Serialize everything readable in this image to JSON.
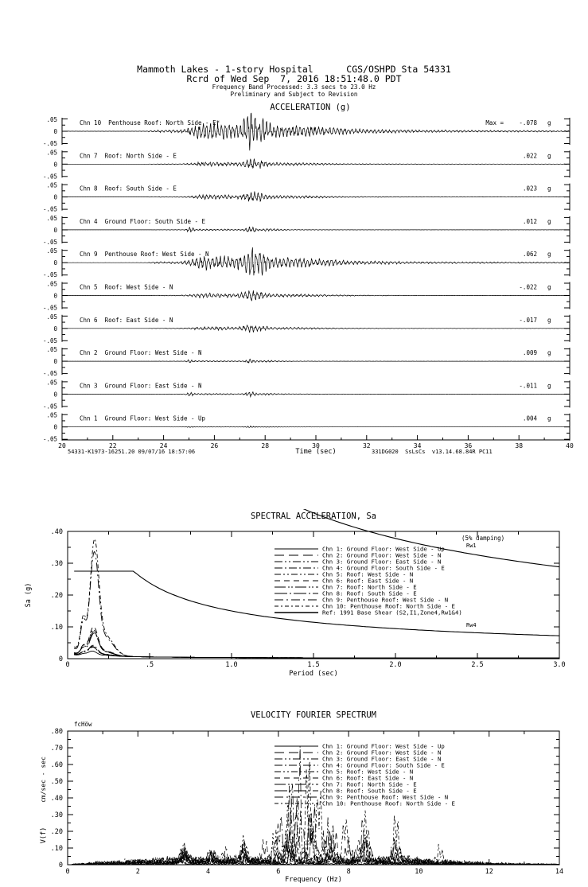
{
  "header": {
    "line1": "Mammoth Lakes - 1-story Hospital      CGS/OSHPD Sta 54331",
    "line2": "Rcrd of Wed Sep  7, 2016 18:51:48.0 PDT",
    "line3": "Frequency Band Processed: 3.3 secs to 23.0 Hz",
    "line4": "Preliminary and Subject to Revision"
  },
  "chart_data": [
    {
      "type": "line",
      "id": "acceleration-time-series",
      "title": "ACCELERATION (g)",
      "xlabel": "Time (sec)",
      "x_range": [
        20,
        40
      ],
      "x_major_ticks": [
        20,
        22,
        24,
        26,
        28,
        30,
        32,
        34,
        36,
        38,
        40
      ],
      "strip_yticks": [
        ".05",
        "0",
        "-.05"
      ],
      "strip_scale_g": 0.05,
      "unit": "g",
      "max_prefix": "Max =",
      "footer_left": "54331-K1973-16251.20 09/07/16 18:57:06",
      "footer_right": "331DG020  SsLsCs  v13.14.68.84R PC11",
      "main_event_time_sec": 27.5,
      "channels": [
        {
          "label": "Chn 10  Penthouse Roof: North Side - E*",
          "max_label": "-.078",
          "peak_g": -0.078,
          "kind": "penthouse",
          "carrier_hz": 6.8
        },
        {
          "label": "Chn 7  Roof: North Side - E",
          "max_label": ".022",
          "peak_g": 0.022,
          "kind": "roof",
          "carrier_hz": 6.8
        },
        {
          "label": "Chn 8  Roof: South Side - E",
          "max_label": ".023",
          "peak_g": 0.023,
          "kind": "roof",
          "carrier_hz": 6.9
        },
        {
          "label": "Chn 4  Ground Floor: South Side - E",
          "max_label": ".012",
          "peak_g": 0.012,
          "kind": "ground",
          "carrier_hz": 7.2
        },
        {
          "label": "Chn 9  Penthouse Roof: West Side - N",
          "max_label": ".062",
          "peak_g": 0.062,
          "kind": "penthouse",
          "carrier_hz": 6.4
        },
        {
          "label": "Chn 5  Roof: West Side - N",
          "max_label": "-.022",
          "peak_g": -0.022,
          "kind": "roof",
          "carrier_hz": 6.4
        },
        {
          "label": "Chn 6  Roof: East Side - N",
          "max_label": "-.017",
          "peak_g": -0.017,
          "kind": "roof",
          "carrier_hz": 6.5
        },
        {
          "label": "Chn 2  Ground Floor: West Side - N",
          "max_label": ".009",
          "peak_g": 0.009,
          "kind": "ground",
          "carrier_hz": 7.0
        },
        {
          "label": "Chn 3  Ground Floor: East Side - N",
          "max_label": "-.011",
          "peak_g": -0.011,
          "kind": "ground",
          "carrier_hz": 7.0
        },
        {
          "label": "Chn 1  Ground Floor: West Side - Up",
          "max_label": ".004",
          "peak_g": 0.004,
          "kind": "ground",
          "carrier_hz": 9.0
        }
      ]
    },
    {
      "type": "line",
      "id": "spectral-acceleration",
      "title": "SPECTRAL ACCELERATION, Sa",
      "damping_note": "(5% damping)",
      "xlabel": "Period (sec)",
      "ylabel": "Sa (g)",
      "xlim": [
        0,
        3.0
      ],
      "ylim": [
        0,
        0.4
      ],
      "x_major_tick_labels": [
        "0",
        ".5",
        "1.0",
        "1.5",
        "2.0",
        "2.5",
        "3.0"
      ],
      "x_major_tick_values": [
        0,
        0.5,
        1.0,
        1.5,
        2.0,
        2.5,
        3.0
      ],
      "x_minor_step": 0.25,
      "y_major_tick_labels": [
        ".40",
        ".30",
        ".20",
        ".10",
        "0"
      ],
      "y_major_tick_values": [
        0.4,
        0.3,
        0.2,
        0.1,
        0
      ],
      "y_minor_step": 0.05,
      "series": [
        {
          "name": "Chn 1: Ground Floor: West Side - Up",
          "dash": "",
          "sa_peak_g": 0.014,
          "peak_period_sec": 0.15,
          "pga_g": 0.004
        },
        {
          "name": "Chn 2: Ground Floor: West Side - N",
          "dash": "12 6",
          "sa_peak_g": 0.027,
          "peak_period_sec": 0.15,
          "pga_g": 0.009
        },
        {
          "name": "Chn 3: Ground Floor: East Side - N",
          "dash": "10 3 2 3 2 3",
          "sa_peak_g": 0.025,
          "peak_period_sec": 0.15,
          "pga_g": 0.011
        },
        {
          "name": "Chn 4: Ground Floor: South Side - E",
          "dash": "10 3 2 3",
          "sa_peak_g": 0.03,
          "peak_period_sec": 0.15,
          "pga_g": 0.012
        },
        {
          "name": "Chn 5: Roof: West Side - N",
          "dash": "8 3 2 3 2 3",
          "sa_peak_g": 0.075,
          "peak_period_sec": 0.15,
          "pga_g": 0.022
        },
        {
          "name": "Chn 6: Roof: East Side - N",
          "dash": "7 5",
          "sa_peak_g": 0.085,
          "peak_period_sec": 0.15,
          "pga_g": 0.017
        },
        {
          "name": "Chn 7: Roof: North Side - E",
          "dash": "14 3 2 2 2 3",
          "sa_peak_g": 0.07,
          "peak_period_sec": 0.15,
          "pga_g": 0.022
        },
        {
          "name": "Chn 8: Roof: South Side - E",
          "dash": "16 3 2 3",
          "sa_peak_g": 0.065,
          "peak_period_sec": 0.15,
          "pga_g": 0.023
        },
        {
          "name": "Chn 9: Penthouse Roof: West Side - N",
          "dash": "11 4 2 4",
          "sa_peak_g": 0.3,
          "peak_period_sec": 0.15,
          "pga_g": 0.062
        },
        {
          "name": "Chn 10: Penthouse Roof: North Side - E",
          "dash": "5 3 2 3",
          "sa_peak_g": 0.335,
          "peak_period_sec": 0.15,
          "pga_g": 0.078
        }
      ],
      "ref": {
        "name": "Ref: 1991 Base Shear (S2,I1,Zone4,Rw1&4)",
        "labels": [
          "Rw1",
          "Rw4"
        ],
        "plateau_g": 0.275,
        "corner_period_sec": 0.403,
        "coef_rw4": 0.15,
        "coef_rw1": 0.6,
        "decay_exponent": 0.6667
      }
    },
    {
      "type": "line",
      "id": "velocity-fourier-spectrum",
      "title": "VELOCITY FOURIER SPECTRUM",
      "corner_note": "fcHöw",
      "xlabel": "Frequency (Hz)",
      "ylabel": "V(f)",
      "ylabel_units": "cm/sec - sec",
      "xlim": [
        0,
        14
      ],
      "ylim": [
        0,
        0.8
      ],
      "x_major_ticks": [
        0,
        2,
        4,
        6,
        8,
        10,
        12,
        14
      ],
      "x_minor_step": 1,
      "y_major_tick_labels": [
        ".80",
        ".70",
        ".60",
        ".50",
        ".40",
        ".30",
        ".20",
        ".10",
        "0"
      ],
      "y_major_tick_values": [
        0.8,
        0.7,
        0.6,
        0.5,
        0.4,
        0.3,
        0.2,
        0.1,
        0
      ],
      "y_minor_step": 0.05,
      "series": [
        {
          "name": "Chn 1: Ground Floor: West Side - Up",
          "dash": "",
          "peak_cm_sec": 0.06,
          "noise": 0.12,
          "peaks_hz": [
            [
              3.2,
              0.6
            ],
            [
              4.6,
              0.8
            ],
            [
              5.6,
              0.7
            ],
            [
              6.8,
              1.0
            ],
            [
              7.8,
              0.6
            ],
            [
              9.0,
              0.4
            ]
          ]
        },
        {
          "name": "Chn 2: Ground Floor: West Side - N",
          "dash": "12 6",
          "peak_cm_sec": 0.11,
          "noise": 0.14,
          "peaks_hz": [
            [
              3.3,
              0.7
            ],
            [
              4.2,
              0.6
            ],
            [
              5.0,
              0.8
            ],
            [
              6.3,
              1.0
            ],
            [
              7.4,
              0.7
            ],
            [
              8.2,
              0.5
            ]
          ]
        },
        {
          "name": "Chn 3: Ground Floor: East Side - N",
          "dash": "10 3 2 3 2 3",
          "peak_cm_sec": 0.12,
          "noise": 0.14,
          "peaks_hz": [
            [
              3.3,
              0.8
            ],
            [
              4.1,
              0.55
            ],
            [
              5.1,
              0.8
            ],
            [
              6.4,
              1.0
            ],
            [
              7.5,
              0.65
            ],
            [
              8.4,
              0.5
            ]
          ]
        },
        {
          "name": "Chn 4: Ground Floor: South Side - E",
          "dash": "10 3 2 3",
          "peak_cm_sec": 0.13,
          "noise": 0.14,
          "peaks_hz": [
            [
              3.3,
              0.6
            ],
            [
              4.1,
              0.55
            ],
            [
              5.0,
              0.7
            ],
            [
              6.0,
              0.6
            ],
            [
              6.5,
              1.0
            ],
            [
              7.5,
              0.6
            ],
            [
              8.3,
              0.5
            ]
          ]
        },
        {
          "name": "Chn 5: Roof: West Side - N",
          "dash": "8 3 2 3 2 3",
          "peak_cm_sec": 0.33,
          "noise": 0.1,
          "peaks_hz": [
            [
              3.3,
              0.25
            ],
            [
              5.0,
              0.3
            ],
            [
              6.2,
              0.6
            ],
            [
              6.6,
              1.0
            ],
            [
              7.3,
              0.5
            ],
            [
              8.4,
              0.35
            ],
            [
              9.4,
              0.3
            ]
          ]
        },
        {
          "name": "Chn 6: Roof: East Side - N",
          "dash": "7 5",
          "peak_cm_sec": 0.32,
          "noise": 0.1,
          "peaks_hz": [
            [
              3.3,
              0.25
            ],
            [
              4.5,
              0.3
            ],
            [
              5.6,
              0.4
            ],
            [
              6.5,
              1.0
            ],
            [
              7.6,
              0.6
            ],
            [
              8.3,
              0.5
            ],
            [
              9.3,
              0.2
            ]
          ]
        },
        {
          "name": "Chn 7: Roof: North Side - E",
          "dash": "14 3 2 2 2 3",
          "peak_cm_sec": 0.3,
          "noise": 0.1,
          "peaks_hz": [
            [
              4.1,
              0.2
            ],
            [
              5.9,
              0.35
            ],
            [
              6.3,
              0.5
            ],
            [
              6.9,
              1.0
            ],
            [
              7.4,
              0.7
            ],
            [
              8.5,
              0.45
            ],
            [
              9.3,
              0.3
            ]
          ]
        },
        {
          "name": "Chn 8: Roof: South Side - E",
          "dash": "16 3 2 3",
          "peak_cm_sec": 0.28,
          "noise": 0.1,
          "peaks_hz": [
            [
              3.4,
              0.2
            ],
            [
              5.0,
              0.3
            ],
            [
              6.3,
              0.6
            ],
            [
              6.9,
              1.0
            ],
            [
              7.5,
              0.45
            ],
            [
              8.0,
              0.5
            ],
            [
              8.6,
              0.3
            ]
          ]
        },
        {
          "name": "Chn 9: Penthouse Roof: West Side - N",
          "dash": "11 4 2 4",
          "peak_cm_sec": 0.71,
          "noise": 0.05,
          "peaks_hz": [
            [
              3.3,
              0.12
            ],
            [
              4.1,
              0.12
            ],
            [
              5.0,
              0.22
            ],
            [
              6.05,
              0.45
            ],
            [
              6.35,
              0.75
            ],
            [
              6.6,
              1.0
            ],
            [
              7.0,
              0.55
            ],
            [
              7.5,
              0.42
            ],
            [
              8.4,
              0.35
            ],
            [
              9.4,
              0.18
            ]
          ]
        },
        {
          "name": "Chn 10: Penthouse Roof: North Side - E",
          "dash": "5 3 2 3",
          "peak_cm_sec": 0.62,
          "noise": 0.05,
          "peaks_hz": [
            [
              3.3,
              0.1
            ],
            [
              5.0,
              0.2
            ],
            [
              5.9,
              0.3
            ],
            [
              6.3,
              0.55
            ],
            [
              6.85,
              1.0
            ],
            [
              7.15,
              0.75
            ],
            [
              7.9,
              0.45
            ],
            [
              8.5,
              0.4
            ],
            [
              9.35,
              0.38
            ],
            [
              10.6,
              0.13
            ]
          ]
        }
      ]
    }
  ]
}
